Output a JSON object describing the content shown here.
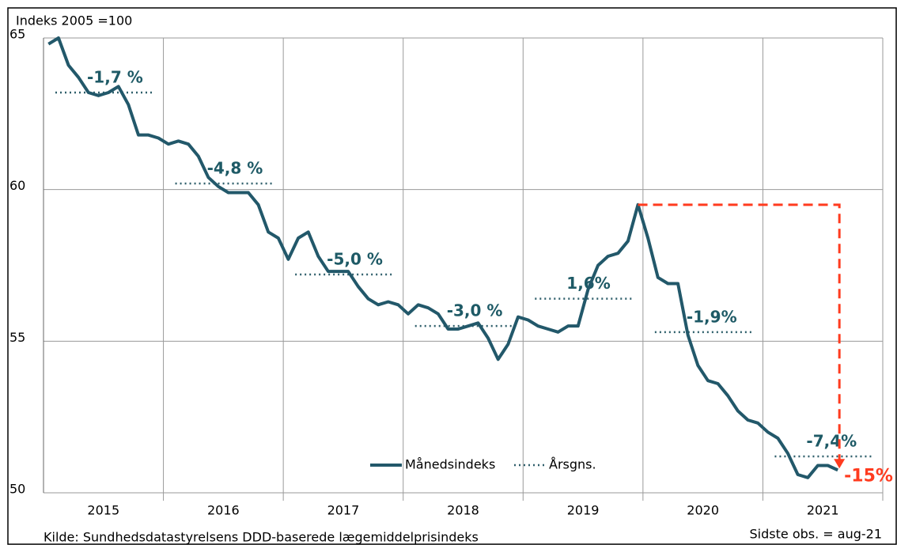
{
  "chart_data": {
    "type": "line",
    "y_axis_label": "Indeks 2005 =100",
    "source": "Kilde: Sundhedsdatastyrelsens DDD-baserede lægemiddelprisindeks",
    "note": "Sidste obs. = aug-21",
    "years": [
      "2015",
      "2016",
      "2017",
      "2018",
      "2019",
      "2020",
      "2021"
    ],
    "ylim": [
      50,
      65
    ],
    "yticks": [
      50,
      55,
      60,
      65
    ],
    "grid": true,
    "series": [
      {
        "name": "Månedsindeks",
        "color": "#22586a",
        "values": [
          64.8,
          65.0,
          64.1,
          63.7,
          63.2,
          63.1,
          63.2,
          63.4,
          62.8,
          61.8,
          61.8,
          61.7,
          61.5,
          61.6,
          61.5,
          61.1,
          60.4,
          60.1,
          59.9,
          59.9,
          59.9,
          59.5,
          58.6,
          58.4,
          57.7,
          58.4,
          58.6,
          57.8,
          57.3,
          57.3,
          57.3,
          56.8,
          56.4,
          56.2,
          56.3,
          56.2,
          55.9,
          56.2,
          56.1,
          55.9,
          55.4,
          55.4,
          55.5,
          55.6,
          55.1,
          54.4,
          54.9,
          55.8,
          55.7,
          55.5,
          55.4,
          55.3,
          55.5,
          55.5,
          56.7,
          57.5,
          57.8,
          57.9,
          58.3,
          59.5,
          58.4,
          57.1,
          56.9,
          56.9,
          55.2,
          54.2,
          53.7,
          53.6,
          53.2,
          52.7,
          52.4,
          52.3,
          52.0,
          51.8,
          51.3,
          50.6,
          50.5,
          50.9,
          50.9,
          50.75
        ]
      },
      {
        "name": "Årsgns.",
        "color": "#2f5f6b",
        "values": [
          63.2,
          60.2,
          57.2,
          55.5,
          56.4,
          55.3,
          51.2
        ],
        "value_labels": [
          "-1,7 %",
          "-4,8 %",
          "-5,0 %",
          "-3,0 %",
          "1,6%",
          "-1,9%",
          "-7,4%"
        ]
      }
    ],
    "annotation": {
      "text": "-15%",
      "color": "#ff3b1f"
    }
  }
}
